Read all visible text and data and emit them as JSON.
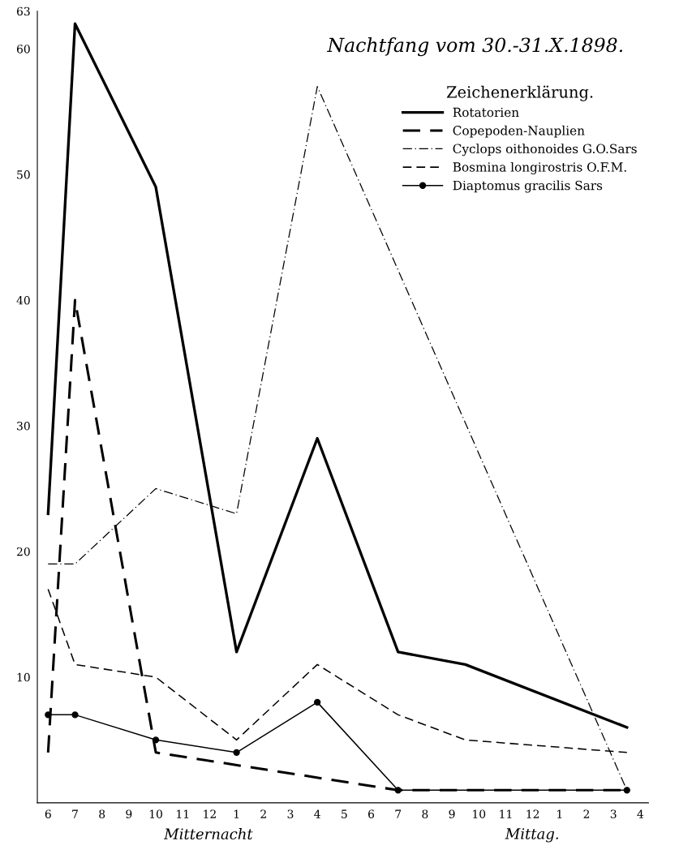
{
  "chart_data": {
    "type": "line",
    "title": "Nachtfang vom 30.-31.X.1898.",
    "legend_title": "Zeichenerklärung.",
    "legend": "top right",
    "x": [
      "1898-10-30T18:00",
      "1898-10-30T19:00",
      "1898-10-30T22:00",
      "1898-10-31T01:00",
      "1898-10-31T04:00",
      "1898-10-31T07:00",
      "1898-10-31T09:30",
      "1898-10-31T15:30"
    ],
    "xlim": [
      "1898-10-30T17:36",
      "1898-10-31T16:18"
    ],
    "xticks": [
      {
        "value": "1898-10-30T18:00",
        "label": "6"
      },
      {
        "value": "1898-10-30T19:00",
        "label": "7"
      },
      {
        "value": "1898-10-30T20:00",
        "label": "8"
      },
      {
        "value": "1898-10-30T21:00",
        "label": "9"
      },
      {
        "value": "1898-10-30T22:00",
        "label": "10"
      },
      {
        "value": "1898-10-30T23:00",
        "label": "11"
      },
      {
        "value": "1898-10-31T00:00",
        "label": "12"
      },
      {
        "value": "1898-10-31T01:00",
        "label": "1"
      },
      {
        "value": "1898-10-31T02:00",
        "label": "2"
      },
      {
        "value": "1898-10-31T03:00",
        "label": "3"
      },
      {
        "value": "1898-10-31T04:00",
        "label": "4"
      },
      {
        "value": "1898-10-31T05:00",
        "label": "5"
      },
      {
        "value": "1898-10-31T06:00",
        "label": "6"
      },
      {
        "value": "1898-10-31T07:00",
        "label": "7"
      },
      {
        "value": "1898-10-31T08:00",
        "label": "8"
      },
      {
        "value": "1898-10-31T09:00",
        "label": "9"
      },
      {
        "value": "1898-10-31T10:00",
        "label": "10"
      },
      {
        "value": "1898-10-31T11:00",
        "label": "11"
      },
      {
        "value": "1898-10-31T12:00",
        "label": "12"
      },
      {
        "value": "1898-10-31T13:00",
        "label": "1"
      },
      {
        "value": "1898-10-31T14:00",
        "label": "2"
      },
      {
        "value": "1898-10-31T15:00",
        "label": "3"
      },
      {
        "value": "1898-10-31T16:00",
        "label": "4"
      }
    ],
    "ylim": [
      0,
      63
    ],
    "yticks": [
      10,
      20,
      30,
      40,
      50,
      60,
      63
    ],
    "series": [
      {
        "name": "Rotatorien",
        "color": "#000000",
        "line_style": "solid",
        "values": [
          23,
          62,
          49,
          12,
          29,
          12,
          11,
          6
        ]
      },
      {
        "name": "Copepoden-Nauplien",
        "color": "#000000",
        "line_style": "dashed",
        "values": [
          4,
          40,
          4,
          null,
          null,
          1,
          null,
          1
        ]
      },
      {
        "name": "Cyclops oithonoides G.O.Sars",
        "color": "#000000",
        "line_style": "dashdot",
        "values": [
          19,
          19,
          25,
          23,
          57,
          null,
          null,
          1
        ]
      },
      {
        "name": "Bosmina longirostris O.F.M.",
        "color": "#000000",
        "line_style": "dashed",
        "values": [
          17,
          11,
          10,
          5,
          11,
          7,
          5,
          4
        ]
      },
      {
        "name": "Diaptomus gracilis Sars",
        "color": "#000000",
        "line_style": "solid",
        "marker": "circle",
        "x": [
          "1898-10-30T18:00",
          "1898-10-30T19:00",
          "1898-10-30T22:00",
          "1898-10-31T01:00",
          "1898-10-31T04:00",
          "1898-10-31T07:00",
          "1898-10-31T15:30"
        ],
        "values": [
          7,
          7,
          5,
          4,
          8,
          1,
          1
        ]
      }
    ],
    "annotations": [
      "Mitternacht",
      "Mittag."
    ]
  }
}
